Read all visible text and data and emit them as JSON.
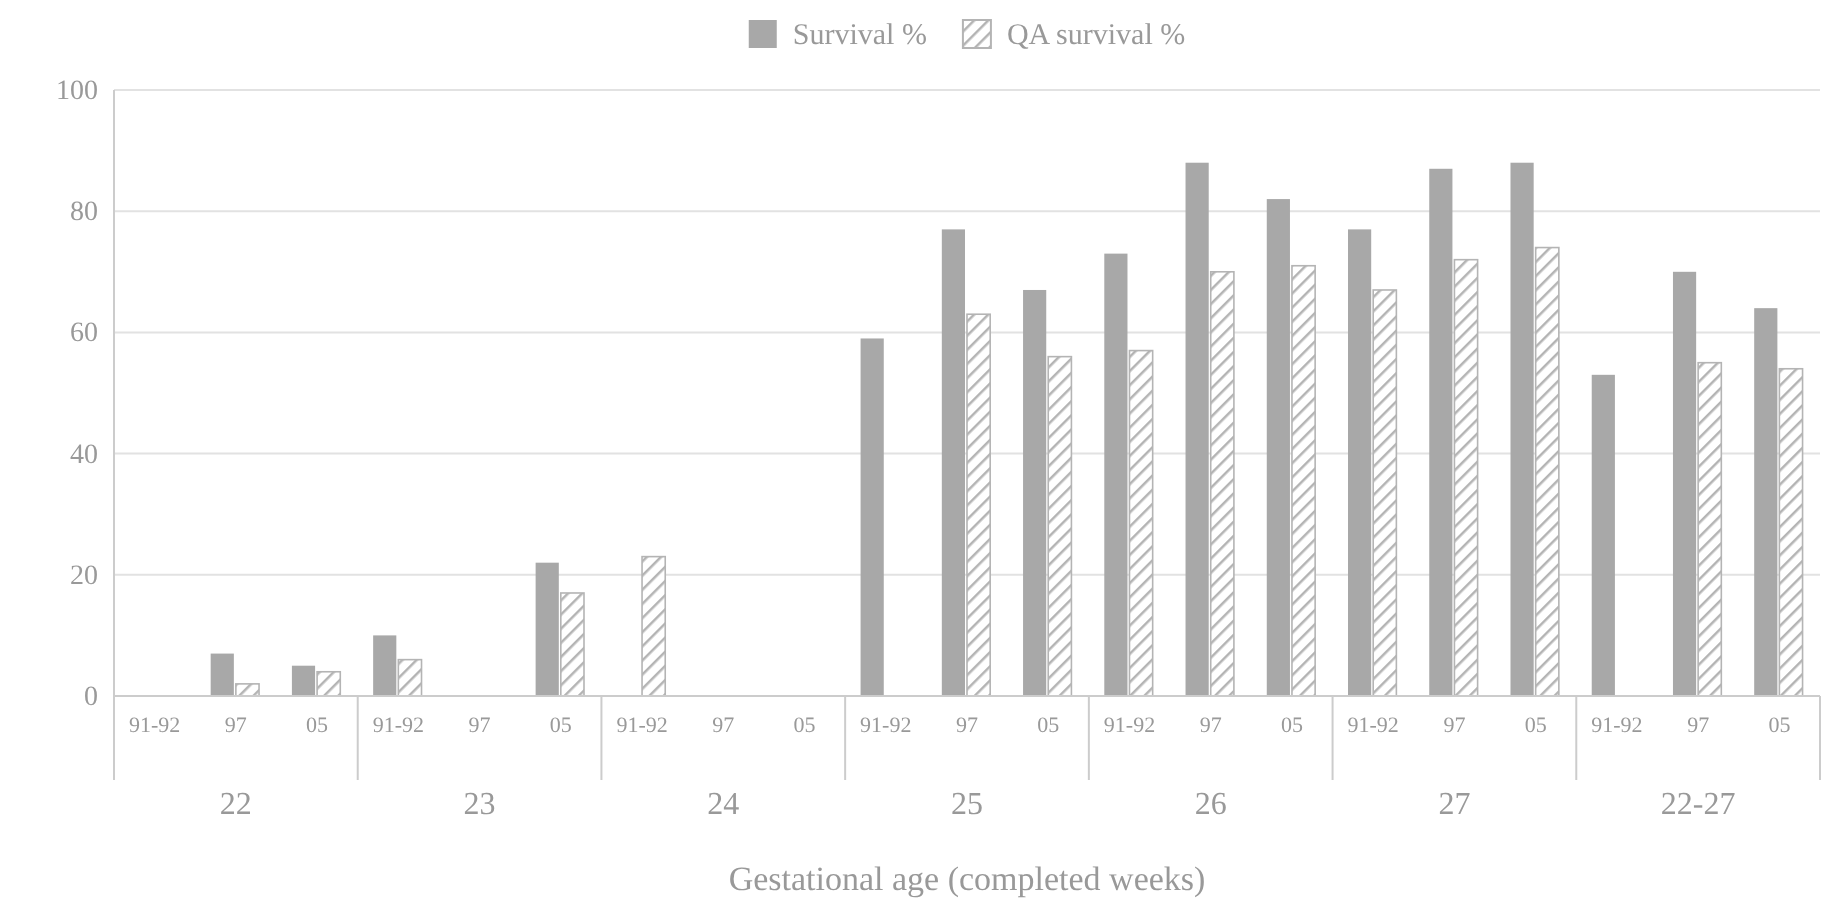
{
  "chart_data": {
    "type": "bar",
    "xlabel": "Gestational age (completed weeks)",
    "categories": [
      "91-92",
      "97",
      "05",
      "91-92",
      "97",
      "05",
      "91-92",
      "97",
      "05",
      "91-92",
      "97",
      "05",
      "91-92",
      "97",
      "05",
      "91-92",
      "97",
      "05",
      "91-92",
      "97",
      "05"
    ],
    "annotations": [
      "22",
      "23",
      "24",
      "25",
      "26",
      "27",
      "22-27"
    ],
    "series": [
      {
        "name": "Survival %",
        "color": "#a8a8a8",
        "values": [
          0,
          7,
          5,
          10,
          null,
          22,
          null,
          null,
          null,
          59,
          77,
          67,
          73,
          88,
          82,
          77,
          87,
          88,
          53,
          70,
          64
        ]
      },
      {
        "name": "QA survival %",
        "color": "#b4b4b4",
        "values": [
          0,
          2,
          4,
          6,
          null,
          17,
          23,
          null,
          null,
          null,
          63,
          56,
          57,
          70,
          71,
          67,
          72,
          74,
          null,
          55,
          54
        ]
      }
    ],
    "ylim": [
      0,
      100
    ],
    "yticks": [
      0,
      20,
      40,
      60,
      80,
      100
    ],
    "grid": "y",
    "legend": "top"
  }
}
